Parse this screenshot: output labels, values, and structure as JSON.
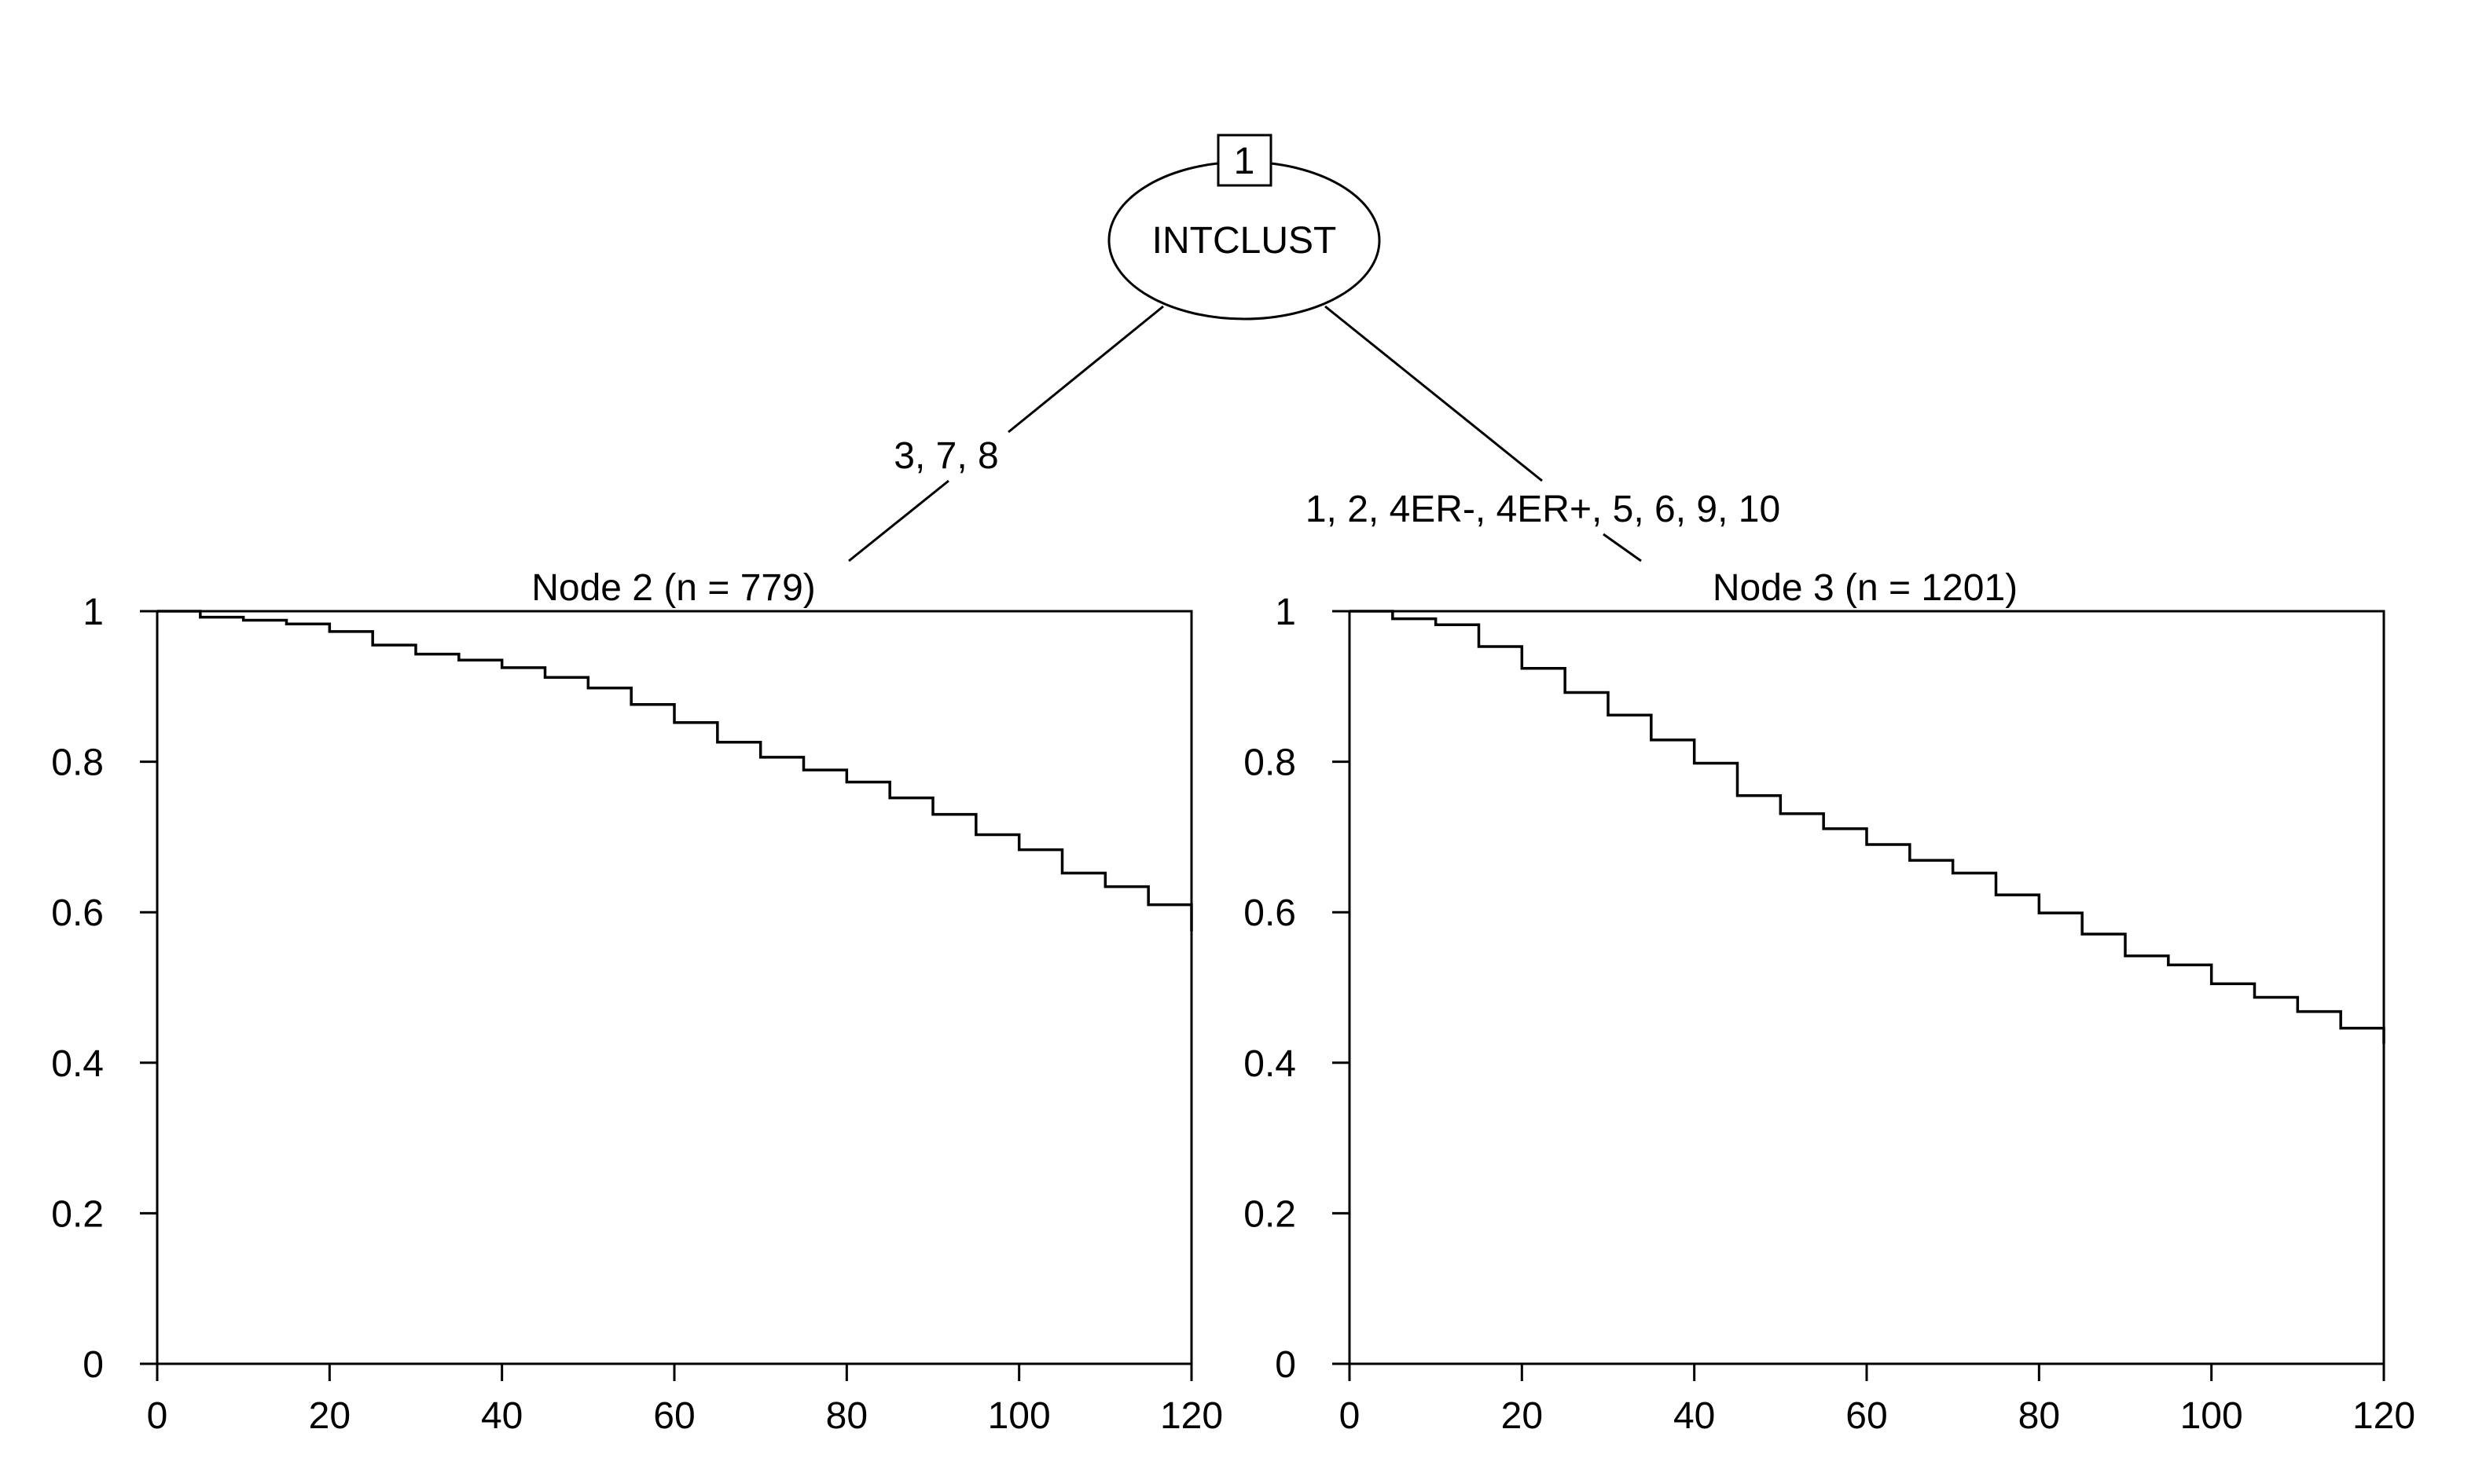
{
  "tree": {
    "root": {
      "id": "1",
      "variable": "INTCLUST"
    },
    "edges": [
      {
        "label": "3, 7, 8"
      },
      {
        "label": "1, 2, 4ER-, 4ER+, 5, 6, 9, 10"
      }
    ]
  },
  "chart_data": [
    {
      "type": "line",
      "title": "Node 2 (n = 779)",
      "xlim": [
        0,
        120
      ],
      "ylim": [
        0,
        1
      ],
      "xticks": [
        "0",
        "20",
        "40",
        "60",
        "80",
        "100",
        "120"
      ],
      "yticks": [
        "0",
        "0.2",
        "0.4",
        "0.6",
        "0.8",
        "1"
      ],
      "grid": false,
      "series": [
        {
          "x": [
            0,
            5,
            10,
            15,
            20,
            25,
            30,
            35,
            40,
            45,
            50,
            55,
            60,
            65,
            70,
            75,
            80,
            85,
            90,
            95,
            100,
            105,
            110,
            115,
            120
          ],
          "y": [
            1.0,
            0.992,
            0.988,
            0.983,
            0.973,
            0.955,
            0.943,
            0.935,
            0.925,
            0.912,
            0.898,
            0.876,
            0.852,
            0.826,
            0.806,
            0.789,
            0.773,
            0.752,
            0.73,
            0.703,
            0.683,
            0.652,
            0.634,
            0.61,
            0.575
          ]
        }
      ]
    },
    {
      "type": "line",
      "title": "Node 3 (n = 1201)",
      "xlim": [
        0,
        120
      ],
      "ylim": [
        0,
        1
      ],
      "xticks": [
        "0",
        "20",
        "40",
        "60",
        "80",
        "100",
        "120"
      ],
      "yticks": [
        "0",
        "0.2",
        "0.4",
        "0.6",
        "0.8",
        "1"
      ],
      "grid": false,
      "series": [
        {
          "x": [
            0,
            5,
            10,
            15,
            20,
            25,
            30,
            35,
            40,
            45,
            50,
            55,
            60,
            65,
            70,
            75,
            80,
            85,
            90,
            95,
            100,
            105,
            110,
            115,
            120
          ],
          "y": [
            1.0,
            0.99,
            0.982,
            0.953,
            0.924,
            0.892,
            0.862,
            0.829,
            0.798,
            0.755,
            0.731,
            0.711,
            0.69,
            0.669,
            0.652,
            0.623,
            0.599,
            0.571,
            0.542,
            0.53,
            0.505,
            0.487,
            0.468,
            0.446,
            0.425
          ]
        }
      ]
    }
  ]
}
